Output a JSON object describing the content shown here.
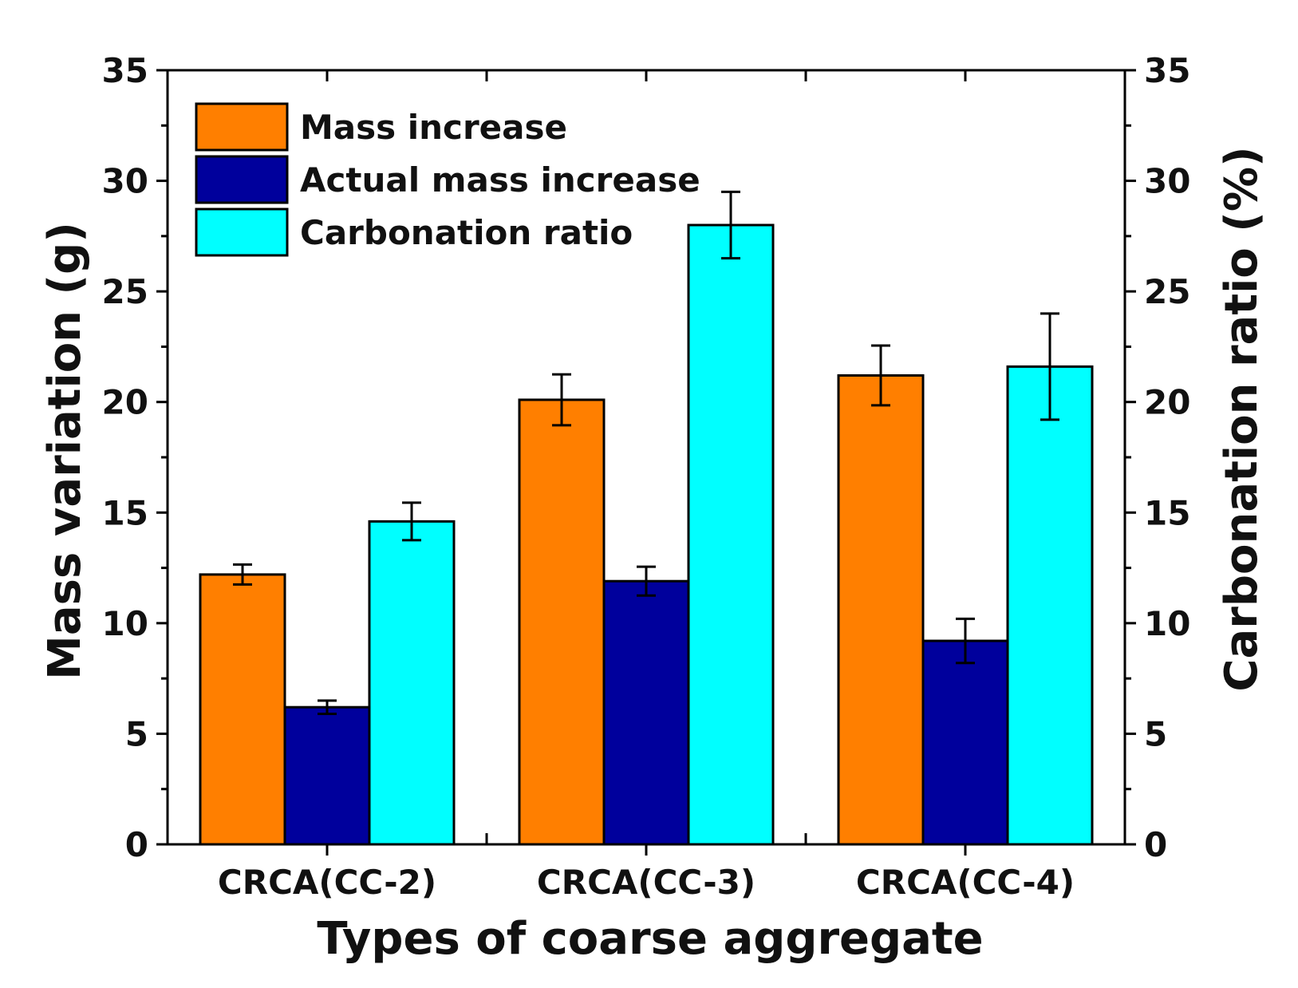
{
  "chart_data": {
    "type": "bar",
    "title": "",
    "xlabel": "Types of coarse aggregate",
    "ylabel": "Mass variation (g)",
    "y2label": "Carbonation ratio (%)",
    "ylim": [
      0,
      35
    ],
    "y2lim": [
      0,
      35
    ],
    "yticks": [
      "0",
      "5",
      "10",
      "15",
      "20",
      "25",
      "30",
      "35"
    ],
    "y2ticks": [
      "0",
      "5",
      "10",
      "15",
      "20",
      "25",
      "30",
      "35"
    ],
    "categories": [
      "CRCA(CC-2)",
      "CRCA(CC-3)",
      "CRCA(CC-4)"
    ],
    "legend_position": "top-left",
    "series": [
      {
        "name": "Mass increase",
        "axis": "left",
        "color": "#ff7f00",
        "values": [
          12.2,
          20.1,
          21.2
        ],
        "errors": [
          0.45,
          1.15,
          1.35
        ]
      },
      {
        "name": "Actual mass increase",
        "axis": "left",
        "color": "#00009c",
        "values": [
          6.2,
          11.9,
          9.2
        ],
        "errors": [
          0.3,
          0.65,
          1.0
        ]
      },
      {
        "name": "Carbonation ratio",
        "axis": "right",
        "color": "#00ffff",
        "values": [
          14.6,
          28.0,
          21.6
        ],
        "errors": [
          0.85,
          1.5,
          2.4
        ]
      }
    ]
  }
}
